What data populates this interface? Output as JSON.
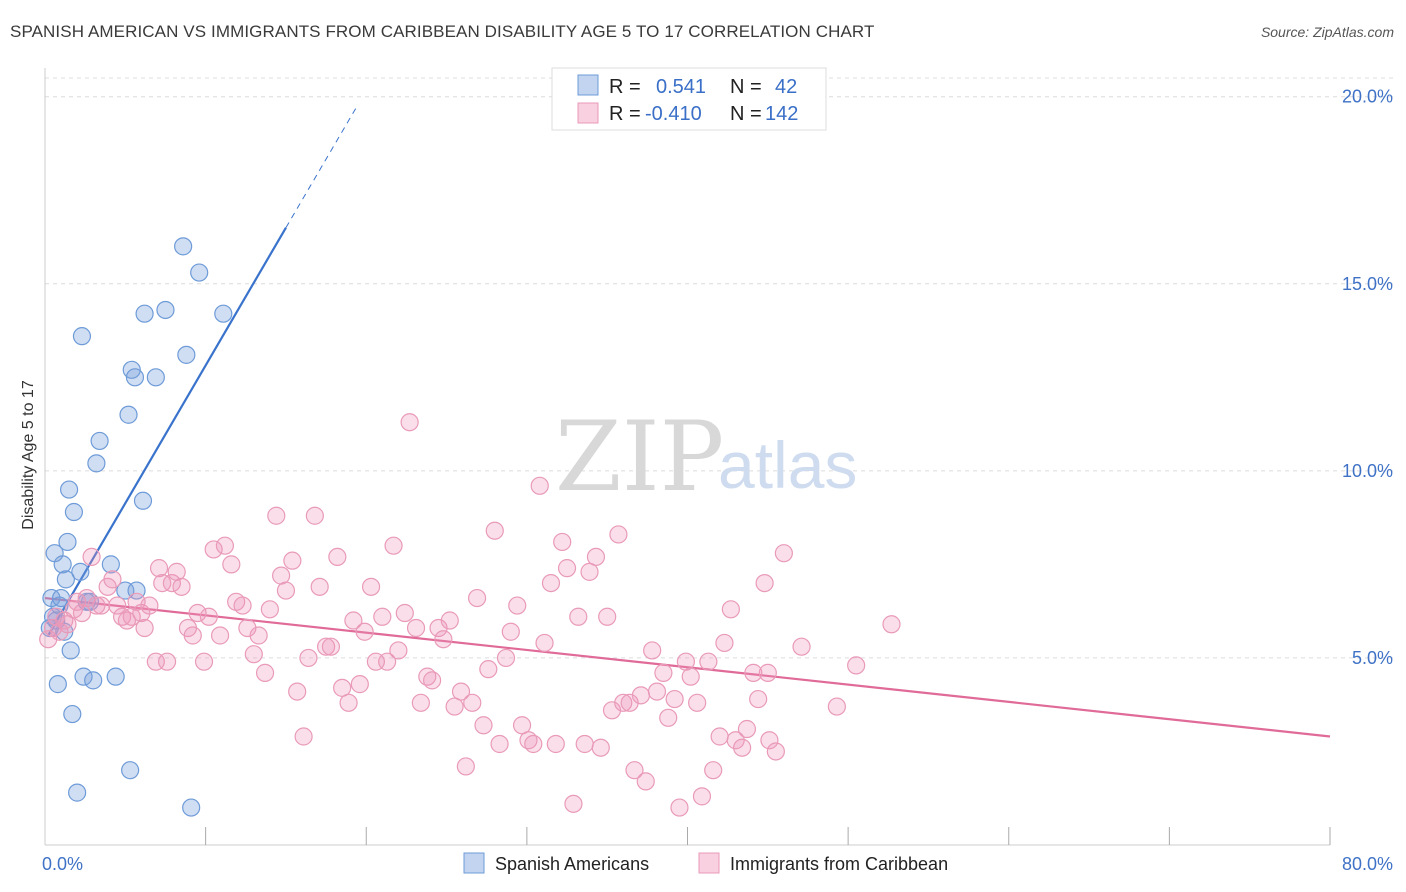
{
  "header": {
    "title": "SPANISH AMERICAN VS IMMIGRANTS FROM CARIBBEAN DISABILITY AGE 5 TO 17 CORRELATION CHART",
    "source": "Source: ZipAtlas.com"
  },
  "watermark": {
    "zip": "ZIP",
    "atlas": "atlas"
  },
  "colors": {
    "blue": "#3a73cc",
    "blue_fill": "rgba(120,160,220,0.35)",
    "blue_stroke": "#6e9bd8",
    "pink": "#e06a98",
    "pink_fill": "rgba(240,150,185,0.30)",
    "pink_stroke": "#e99ab8",
    "grid": "#dcdcdc",
    "tick_text": "#3f72c6"
  },
  "stats_legend": {
    "rows": [
      {
        "r_label": "R = ",
        "r_value": "0.541",
        "n_label": "N = ",
        "n_value": "42",
        "color": "blue"
      },
      {
        "r_label": "R = ",
        "r_value": "-0.410",
        "n_label": "N = ",
        "n_value": "142",
        "color": "pink"
      }
    ]
  },
  "bottom_legend": [
    "Spanish Americans",
    "Immigrants from Caribbean"
  ],
  "chart_data": {
    "type": "scatter",
    "title": "SPANISH AMERICAN VS IMMIGRANTS FROM CARIBBEAN DISABILITY AGE 5 TO 17 CORRELATION CHART",
    "xlabel": "",
    "ylabel": "Disability Age 5 to 17",
    "xlim": [
      0,
      80
    ],
    "ylim": [
      0,
      20
    ],
    "x_tick_labels": [
      "0.0%",
      "80.0%"
    ],
    "y_tick_labels": [
      "5.0%",
      "10.0%",
      "15.0%",
      "20.0%"
    ],
    "y_ticks": [
      5,
      10,
      15,
      20
    ],
    "series": [
      {
        "name": "Spanish Americans",
        "color": "blue",
        "trend": {
          "x": [
            0.2,
            15.0
          ],
          "y": [
            5.6,
            16.5
          ],
          "dash_to": [
            19.5,
            19.8
          ]
        },
        "points": [
          [
            0.3,
            5.8
          ],
          [
            0.4,
            6.6
          ],
          [
            0.5,
            6.1
          ],
          [
            0.6,
            7.8
          ],
          [
            0.8,
            4.3
          ],
          [
            0.9,
            6.4
          ],
          [
            1.0,
            6.6
          ],
          [
            1.1,
            7.5
          ],
          [
            1.3,
            7.1
          ],
          [
            1.4,
            8.1
          ],
          [
            1.5,
            9.5
          ],
          [
            1.6,
            5.2
          ],
          [
            1.7,
            3.5
          ],
          [
            1.8,
            8.9
          ],
          [
            2.0,
            1.4
          ],
          [
            2.2,
            7.3
          ],
          [
            2.3,
            13.6
          ],
          [
            2.4,
            4.5
          ],
          [
            2.6,
            6.5
          ],
          [
            2.8,
            6.5
          ],
          [
            3.0,
            4.4
          ],
          [
            3.2,
            10.2
          ],
          [
            3.4,
            10.8
          ],
          [
            4.1,
            7.5
          ],
          [
            4.4,
            4.5
          ],
          [
            5.0,
            6.8
          ],
          [
            5.2,
            11.5
          ],
          [
            5.3,
            2.0
          ],
          [
            5.4,
            12.7
          ],
          [
            5.6,
            12.5
          ],
          [
            5.7,
            6.8
          ],
          [
            6.1,
            9.2
          ],
          [
            6.2,
            14.2
          ],
          [
            6.9,
            12.5
          ],
          [
            7.5,
            14.3
          ],
          [
            8.6,
            16.0
          ],
          [
            8.8,
            13.1
          ],
          [
            9.1,
            1.0
          ],
          [
            9.6,
            15.3
          ],
          [
            11.1,
            14.2
          ],
          [
            1.2,
            5.7
          ],
          [
            0.7,
            6.0
          ]
        ]
      },
      {
        "name": "Immigrants from Caribbean",
        "color": "pink",
        "trend": {
          "x": [
            0.0,
            80.0
          ],
          "y": [
            6.6,
            2.9
          ]
        },
        "points": [
          [
            0.2,
            5.5
          ],
          [
            0.5,
            5.8
          ],
          [
            0.7,
            6.1
          ],
          [
            0.9,
            5.7
          ],
          [
            1.2,
            6.0
          ],
          [
            1.4,
            5.9
          ],
          [
            1.8,
            6.3
          ],
          [
            2.0,
            6.5
          ],
          [
            2.3,
            6.2
          ],
          [
            2.6,
            6.6
          ],
          [
            2.9,
            7.7
          ],
          [
            3.2,
            6.4
          ],
          [
            3.5,
            6.4
          ],
          [
            3.9,
            6.9
          ],
          [
            4.2,
            7.1
          ],
          [
            4.5,
            6.4
          ],
          [
            4.8,
            6.1
          ],
          [
            5.1,
            6.0
          ],
          [
            5.4,
            6.1
          ],
          [
            5.7,
            6.5
          ],
          [
            6.0,
            6.2
          ],
          [
            6.2,
            5.8
          ],
          [
            6.5,
            6.4
          ],
          [
            6.9,
            4.9
          ],
          [
            7.1,
            7.4
          ],
          [
            7.3,
            7.0
          ],
          [
            7.6,
            4.9
          ],
          [
            7.9,
            7.0
          ],
          [
            8.2,
            7.3
          ],
          [
            8.5,
            6.9
          ],
          [
            8.9,
            5.8
          ],
          [
            9.2,
            5.6
          ],
          [
            9.5,
            6.2
          ],
          [
            9.9,
            4.9
          ],
          [
            10.2,
            6.1
          ],
          [
            10.5,
            7.9
          ],
          [
            10.9,
            5.6
          ],
          [
            11.2,
            8.0
          ],
          [
            11.6,
            7.5
          ],
          [
            11.9,
            6.5
          ],
          [
            12.3,
            6.4
          ],
          [
            12.6,
            5.8
          ],
          [
            13.0,
            5.1
          ],
          [
            13.3,
            5.6
          ],
          [
            13.7,
            4.6
          ],
          [
            14.0,
            6.3
          ],
          [
            14.4,
            8.8
          ],
          [
            14.7,
            7.2
          ],
          [
            15.0,
            6.8
          ],
          [
            15.4,
            7.6
          ],
          [
            15.7,
            4.1
          ],
          [
            16.1,
            2.9
          ],
          [
            16.4,
            5.0
          ],
          [
            16.8,
            8.8
          ],
          [
            17.1,
            6.9
          ],
          [
            17.5,
            5.3
          ],
          [
            17.8,
            5.3
          ],
          [
            18.2,
            7.7
          ],
          [
            18.5,
            4.2
          ],
          [
            18.9,
            3.8
          ],
          [
            19.2,
            6.0
          ],
          [
            19.6,
            4.3
          ],
          [
            19.9,
            5.7
          ],
          [
            20.3,
            6.9
          ],
          [
            20.6,
            4.9
          ],
          [
            21.0,
            6.1
          ],
          [
            21.3,
            4.9
          ],
          [
            21.7,
            8.0
          ],
          [
            22.0,
            5.2
          ],
          [
            22.4,
            6.2
          ],
          [
            22.7,
            11.3
          ],
          [
            23.1,
            5.8
          ],
          [
            23.4,
            3.8
          ],
          [
            23.8,
            4.5
          ],
          [
            24.1,
            4.4
          ],
          [
            24.5,
            5.8
          ],
          [
            24.8,
            5.5
          ],
          [
            25.2,
            6.0
          ],
          [
            25.5,
            3.7
          ],
          [
            25.9,
            4.1
          ],
          [
            26.2,
            2.1
          ],
          [
            26.6,
            3.8
          ],
          [
            26.9,
            6.6
          ],
          [
            27.3,
            3.2
          ],
          [
            27.6,
            4.7
          ],
          [
            28.0,
            8.4
          ],
          [
            28.3,
            2.7
          ],
          [
            28.7,
            5.0
          ],
          [
            29.0,
            5.7
          ],
          [
            29.4,
            6.4
          ],
          [
            29.7,
            3.2
          ],
          [
            30.1,
            2.8
          ],
          [
            30.4,
            2.7
          ],
          [
            30.8,
            9.6
          ],
          [
            31.1,
            5.4
          ],
          [
            31.5,
            7.0
          ],
          [
            31.8,
            2.7
          ],
          [
            32.2,
            8.1
          ],
          [
            32.5,
            7.4
          ],
          [
            32.9,
            1.1
          ],
          [
            33.2,
            6.1
          ],
          [
            33.6,
            2.7
          ],
          [
            33.9,
            7.3
          ],
          [
            34.3,
            7.7
          ],
          [
            34.6,
            2.6
          ],
          [
            35.0,
            6.1
          ],
          [
            35.3,
            3.6
          ],
          [
            35.7,
            8.3
          ],
          [
            36.0,
            3.8
          ],
          [
            36.4,
            3.8
          ],
          [
            36.7,
            2.0
          ],
          [
            37.1,
            4.0
          ],
          [
            37.4,
            1.7
          ],
          [
            37.8,
            5.2
          ],
          [
            38.1,
            4.1
          ],
          [
            38.5,
            4.6
          ],
          [
            38.8,
            3.4
          ],
          [
            39.2,
            3.9
          ],
          [
            39.5,
            1.0
          ],
          [
            39.9,
            4.9
          ],
          [
            40.2,
            4.5
          ],
          [
            40.6,
            3.8
          ],
          [
            40.9,
            1.3
          ],
          [
            41.3,
            4.9
          ],
          [
            41.6,
            2.0
          ],
          [
            42.0,
            2.9
          ],
          [
            42.3,
            5.4
          ],
          [
            42.7,
            6.3
          ],
          [
            43.0,
            2.8
          ],
          [
            43.4,
            2.6
          ],
          [
            43.7,
            3.1
          ],
          [
            44.1,
            4.6
          ],
          [
            44.4,
            3.9
          ],
          [
            44.8,
            7.0
          ],
          [
            45.1,
            2.8
          ],
          [
            45.5,
            2.5
          ],
          [
            46.0,
            7.8
          ],
          [
            47.1,
            5.3
          ],
          [
            49.3,
            3.7
          ],
          [
            50.5,
            4.8
          ],
          [
            52.7,
            5.9
          ],
          [
            45.0,
            4.6
          ]
        ]
      }
    ]
  }
}
